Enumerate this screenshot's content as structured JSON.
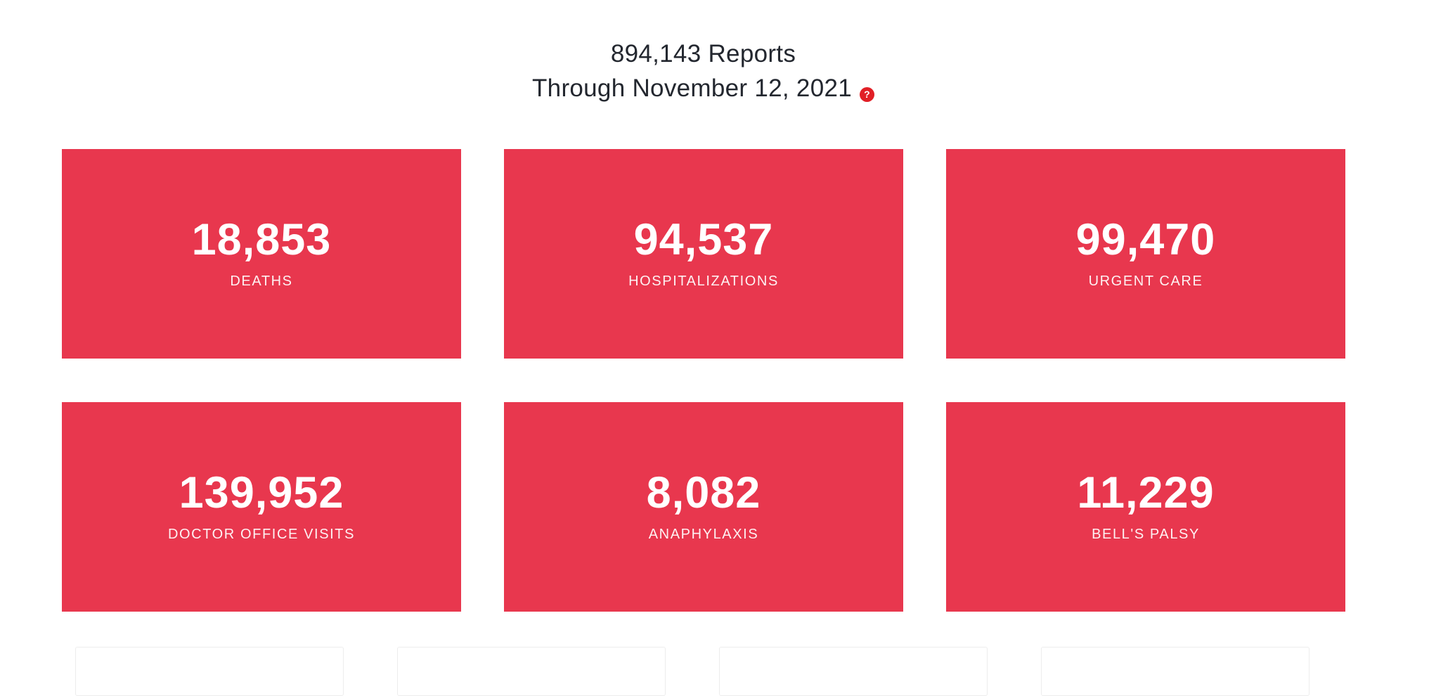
{
  "header": {
    "reports_line": "894,143 Reports",
    "through_line": "Through November 12, 2021",
    "help_glyph": "?"
  },
  "stats": [
    {
      "value": "18,853",
      "label": "DEATHS"
    },
    {
      "value": "94,537",
      "label": "HOSPITALIZATIONS"
    },
    {
      "value": "99,470",
      "label": "URGENT CARE"
    },
    {
      "value": "139,952",
      "label": "DOCTOR OFFICE VISITS"
    },
    {
      "value": "8,082",
      "label": "ANAPHYLAXIS"
    },
    {
      "value": "11,229",
      "label": "BELL'S PALSY"
    }
  ],
  "colors": {
    "card_red": "#e8374e",
    "help_red": "#e11f26",
    "title_text": "#23272f"
  }
}
